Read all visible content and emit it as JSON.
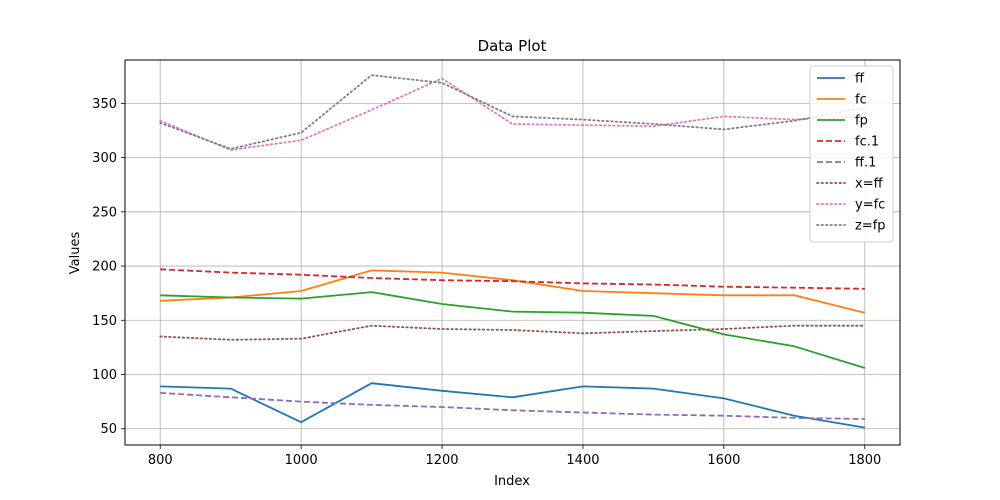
{
  "chart_data": {
    "type": "line",
    "title": "Data Plot",
    "xlabel": "Index",
    "ylabel": "Values",
    "x": [
      800,
      900,
      1000,
      1100,
      1200,
      1300,
      1400,
      1500,
      1600,
      1700,
      1800
    ],
    "xlim": [
      750,
      1850
    ],
    "ylim": [
      35,
      390
    ],
    "xticks": [
      800,
      1000,
      1200,
      1400,
      1600,
      1800
    ],
    "yticks": [
      50,
      100,
      150,
      200,
      250,
      300,
      350
    ],
    "grid": true,
    "legend_position": "top-right",
    "series": [
      {
        "name": "ff",
        "color": "#1f77b4",
        "style": "solid",
        "values": [
          89,
          87,
          56,
          92,
          85,
          79,
          89,
          87,
          78,
          62,
          51
        ]
      },
      {
        "name": "fc",
        "color": "#ff7f0e",
        "style": "solid",
        "values": [
          168,
          171,
          177,
          196,
          194,
          187,
          177,
          175,
          173,
          173,
          157
        ]
      },
      {
        "name": "fp",
        "color": "#2ca02c",
        "style": "solid",
        "values": [
          173,
          171,
          170,
          176,
          165,
          158,
          157,
          154,
          137,
          126,
          106
        ]
      },
      {
        "name": "fc.1",
        "color": "#d62728",
        "style": "dashed",
        "values": [
          197,
          194,
          192,
          189,
          187,
          186,
          184,
          183,
          181,
          180,
          179
        ]
      },
      {
        "name": "ff.1",
        "color": "#9467bd",
        "style": "dashed",
        "values": [
          83,
          79,
          75,
          72,
          70,
          67,
          65,
          63,
          62,
          60,
          59
        ]
      },
      {
        "name": "x=ff",
        "color": "#8c564b",
        "style": "dotted",
        "values": [
          135,
          132,
          133,
          145,
          142,
          141,
          138,
          140,
          142,
          145,
          145
        ]
      },
      {
        "name": "y=fc",
        "color": "#e377c2",
        "style": "dotted",
        "values": [
          334,
          307,
          316,
          344,
          373,
          331,
          330,
          329,
          338,
          335,
          338
        ]
      },
      {
        "name": "z=fp",
        "color": "#7f7f7f",
        "style": "dotted",
        "values": [
          332,
          308,
          323,
          376,
          369,
          338,
          335,
          331,
          326,
          334,
          346
        ]
      }
    ]
  }
}
